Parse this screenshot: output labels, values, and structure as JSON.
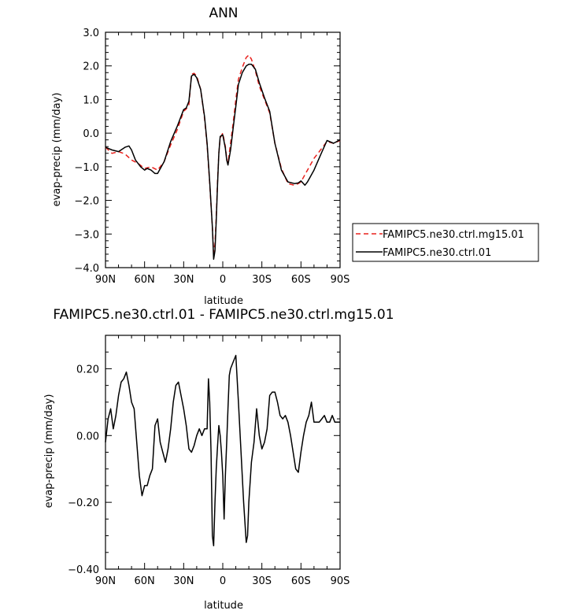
{
  "chart_data": [
    {
      "type": "line",
      "title": "ANN",
      "xlabel": "latitude",
      "ylabel": "evap-precip (mm/day)",
      "x_tick_labels": [
        "90N",
        "60N",
        "30N",
        "0",
        "30S",
        "60S",
        "90S"
      ],
      "y_tick_labels": [
        "-4.0",
        "-3.0",
        "-2.0",
        "-1.0",
        "0.0",
        "1.0",
        "2.0",
        "3.0"
      ],
      "xlim": [
        90,
        -90
      ],
      "ylim": [
        -4.0,
        3.0
      ],
      "legend": {
        "placement": "right, outside plot"
      },
      "series": [
        {
          "name": "FAMIPC5.ne30.ctrl.mg15.01",
          "color": "#e8201c",
          "style": "dashed",
          "x": [
            90,
            85,
            80,
            75,
            70,
            65,
            60,
            55,
            50,
            45,
            40,
            35,
            30,
            28,
            26,
            24,
            22,
            20,
            17,
            14,
            12,
            10,
            8,
            7,
            6,
            5,
            4,
            3,
            2,
            0,
            -2,
            -3,
            -4,
            -6,
            -8,
            -10,
            -12,
            -15,
            -18,
            -20,
            -22,
            -25,
            -28,
            -32,
            -36,
            -40,
            -45,
            -50,
            -55,
            -58,
            -60,
            -65,
            -70,
            -75,
            -80,
            -85,
            -90
          ],
          "values": [
            -0.42,
            -0.6,
            -0.55,
            -0.62,
            -0.8,
            -0.9,
            -1.05,
            -1.0,
            -1.1,
            -0.85,
            -0.35,
            0.1,
            0.65,
            0.72,
            0.85,
            1.75,
            1.78,
            1.7,
            1.3,
            0.45,
            -0.35,
            -1.5,
            -2.8,
            -3.55,
            -3.3,
            -2.5,
            -1.4,
            -0.6,
            -0.15,
            0.0,
            -0.4,
            -0.75,
            -0.9,
            -0.3,
            0.3,
            1.0,
            1.6,
            1.95,
            2.25,
            2.32,
            2.2,
            1.85,
            1.4,
            1.0,
            0.6,
            -0.3,
            -1.05,
            -1.5,
            -1.55,
            -1.5,
            -1.45,
            -1.1,
            -0.75,
            -0.5,
            -0.25,
            -0.3,
            -0.22
          ]
        },
        {
          "name": "FAMIPC5.ne30.ctrl.01",
          "color": "#000000",
          "style": "solid",
          "x": [
            90,
            85,
            80,
            75,
            72,
            70,
            67,
            63,
            60,
            58,
            55,
            52,
            50,
            45,
            40,
            35,
            30,
            28,
            26,
            24,
            22,
            20,
            17,
            14,
            12,
            10,
            8,
            7,
            6,
            5,
            4,
            3,
            2,
            0,
            -2,
            -3,
            -4,
            -6,
            -8,
            -10,
            -12,
            -15,
            -18,
            -20,
            -22,
            -25,
            -28,
            -32,
            -36,
            -40,
            -45,
            -50,
            -55,
            -58,
            -60,
            -63,
            -65,
            -70,
            -75,
            -80,
            -85,
            -90
          ],
          "values": [
            -0.42,
            -0.5,
            -0.55,
            -0.42,
            -0.38,
            -0.5,
            -0.8,
            -1.0,
            -1.1,
            -1.05,
            -1.1,
            -1.2,
            -1.2,
            -0.85,
            -0.25,
            0.2,
            0.7,
            0.75,
            0.95,
            1.7,
            1.75,
            1.65,
            1.3,
            0.5,
            -0.3,
            -1.45,
            -2.8,
            -3.75,
            -3.5,
            -2.6,
            -1.5,
            -0.6,
            -0.1,
            -0.05,
            -0.45,
            -0.8,
            -0.95,
            -0.5,
            0.15,
            0.8,
            1.45,
            1.8,
            2.0,
            2.05,
            2.05,
            1.9,
            1.5,
            1.05,
            0.65,
            -0.3,
            -1.1,
            -1.45,
            -1.5,
            -1.48,
            -1.42,
            -1.55,
            -1.45,
            -1.1,
            -0.65,
            -0.22,
            -0.3,
            -0.2
          ]
        }
      ]
    },
    {
      "type": "line",
      "title": "FAMIPC5.ne30.ctrl.01 - FAMIPC5.ne30.ctrl.mg15.01",
      "xlabel": "latitude",
      "ylabel": "evap-precip (mm/day)",
      "x_tick_labels": [
        "90N",
        "60N",
        "30N",
        "0",
        "30S",
        "60S",
        "90S"
      ],
      "y_tick_labels": [
        "-0.40",
        "-0.20",
        "0.00",
        "0.20"
      ],
      "xlim": [
        90,
        -90
      ],
      "ylim": [
        -0.4,
        0.3
      ],
      "series": [
        {
          "color": "#000000",
          "style": "solid",
          "x": [
            90,
            88,
            86,
            84,
            82,
            80,
            78,
            76,
            74,
            72,
            70,
            68,
            66,
            64,
            62,
            60,
            58,
            56,
            54,
            52,
            50,
            48,
            46,
            44,
            42,
            40,
            38,
            36,
            34,
            32,
            30,
            28,
            26,
            24,
            22,
            20,
            18,
            16,
            14,
            12,
            11,
            10,
            9,
            8,
            7,
            6,
            5,
            4,
            3,
            2,
            1,
            0,
            -1,
            -2,
            -3,
            -4,
            -5,
            -6,
            -8,
            -10,
            -12,
            -14,
            -16,
            -18,
            -19,
            -20,
            -22,
            -24,
            -26,
            -28,
            -30,
            -32,
            -34,
            -36,
            -38,
            -40,
            -42,
            -44,
            -46,
            -48,
            -50,
            -52,
            -54,
            -56,
            -58,
            -60,
            -62,
            -64,
            -66,
            -68,
            -70,
            -72,
            -74,
            -76,
            -78,
            -80,
            -82,
            -84,
            -86,
            -88,
            -90
          ],
          "values": [
            -0.02,
            0.05,
            0.08,
            0.02,
            0.06,
            0.12,
            0.16,
            0.17,
            0.19,
            0.15,
            0.1,
            0.08,
            -0.02,
            -0.12,
            -0.18,
            -0.15,
            -0.15,
            -0.12,
            -0.1,
            0.03,
            0.05,
            -0.02,
            -0.05,
            -0.08,
            -0.04,
            0.02,
            0.1,
            0.15,
            0.16,
            0.12,
            0.08,
            0.03,
            -0.04,
            -0.05,
            -0.03,
            0.0,
            0.02,
            0.0,
            0.02,
            0.02,
            0.17,
            0.1,
            -0.05,
            -0.3,
            -0.33,
            -0.2,
            -0.1,
            -0.03,
            0.03,
            0.0,
            -0.05,
            -0.12,
            -0.25,
            -0.12,
            -0.02,
            0.08,
            0.18,
            0.2,
            0.22,
            0.24,
            0.1,
            -0.05,
            -0.2,
            -0.32,
            -0.3,
            -0.2,
            -0.08,
            -0.02,
            0.08,
            0.0,
            -0.04,
            -0.02,
            0.02,
            0.12,
            0.13,
            0.13,
            0.1,
            0.06,
            0.05,
            0.06,
            0.04,
            0.0,
            -0.05,
            -0.1,
            -0.11,
            -0.05,
            0.0,
            0.04,
            0.06,
            0.1,
            0.04,
            0.04,
            0.04,
            0.05,
            0.06,
            0.04,
            0.04,
            0.06,
            0.04,
            0.04,
            0.04
          ]
        }
      ]
    }
  ]
}
